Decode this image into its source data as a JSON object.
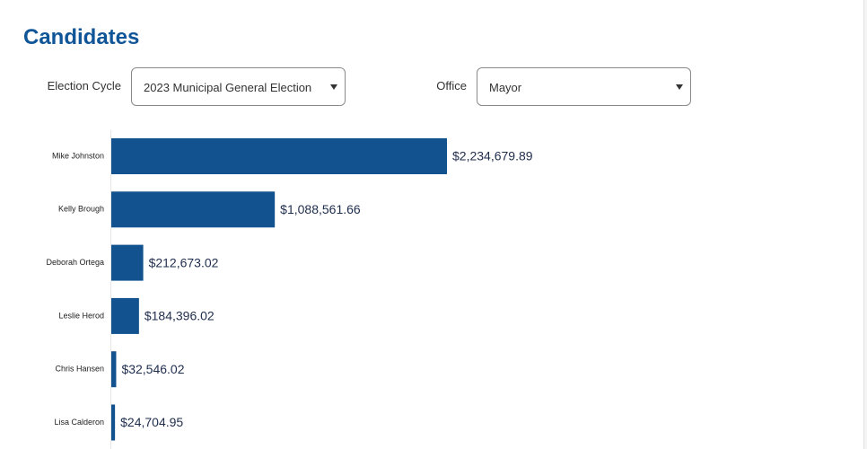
{
  "title": "Candidates",
  "filters": [
    {
      "label": "Election Cycle",
      "value": "2023 Municipal General Election"
    },
    {
      "label": "Office",
      "value": "Mayor"
    }
  ],
  "chart_data": {
    "type": "bar",
    "orientation": "horizontal",
    "color": "#11528f",
    "categories": [
      "Mike Johnston",
      "Kelly Brough",
      "Deborah Ortega",
      "Leslie Herod",
      "Chris Hansen",
      "Lisa Calderon"
    ],
    "values": [
      2234679.89,
      1088561.66,
      212673.02,
      184396.02,
      32546.02,
      24704.95
    ],
    "value_labels": [
      "$2,234,679.89",
      "$1,088,561.66",
      "$212,673.02",
      "$184,396.02",
      "$32,546.02",
      "$24,704.95"
    ]
  }
}
